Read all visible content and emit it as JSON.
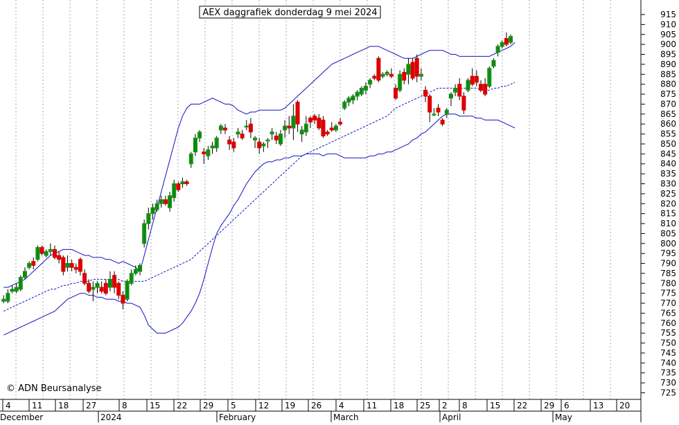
{
  "chart_data": {
    "type": "candlestick",
    "title": "AEX daggrafiek donderdag 9 mei 2024",
    "watermark": "© ADN Beursanalyse",
    "xlabel": "",
    "ylabel": "",
    "ylim": [
      721,
      918
    ],
    "y_ticks": [
      725,
      730,
      735,
      740,
      745,
      750,
      755,
      760,
      765,
      770,
      775,
      780,
      785,
      790,
      795,
      800,
      805,
      810,
      815,
      820,
      825,
      830,
      835,
      840,
      845,
      850,
      855,
      860,
      865,
      870,
      875,
      880,
      885,
      890,
      895,
      900,
      905,
      910,
      915
    ],
    "x_day_ticks": [
      "4",
      "11",
      "18",
      "27",
      "8",
      "15",
      "22",
      "29",
      "5",
      "12",
      "19",
      "26",
      "4",
      "11",
      "18",
      "25",
      "2",
      "8",
      "15",
      "22",
      "29",
      "6",
      "13",
      "20"
    ],
    "x_month_ticks": [
      "December",
      "2024",
      "February",
      "March",
      "April",
      "May"
    ],
    "grid": true,
    "colors": {
      "up": "#0a8a0a",
      "down": "#dd0000",
      "band": "#1010c0",
      "ma": "#1010c0",
      "grid": "#aaaaaa"
    },
    "candles": [
      {
        "o": 771,
        "h": 774,
        "l": 770,
        "c": 772
      },
      {
        "o": 771,
        "h": 777,
        "l": 770,
        "c": 775
      },
      {
        "o": 776,
        "h": 779,
        "l": 775,
        "c": 777
      },
      {
        "o": 776,
        "h": 780,
        "l": 775,
        "c": 778
      },
      {
        "o": 777,
        "h": 784,
        "l": 776,
        "c": 783
      },
      {
        "o": 783,
        "h": 788,
        "l": 782,
        "c": 786
      },
      {
        "o": 788,
        "h": 791,
        "l": 787,
        "c": 790
      },
      {
        "o": 791,
        "h": 793,
        "l": 787,
        "c": 789
      },
      {
        "o": 792,
        "h": 799,
        "l": 791,
        "c": 798
      },
      {
        "o": 798,
        "h": 799,
        "l": 794,
        "c": 795
      },
      {
        "o": 794,
        "h": 797,
        "l": 793,
        "c": 796
      },
      {
        "o": 796,
        "h": 800,
        "l": 794,
        "c": 797
      },
      {
        "o": 797,
        "h": 799,
        "l": 792,
        "c": 793
      },
      {
        "o": 794,
        "h": 796,
        "l": 790,
        "c": 792
      },
      {
        "o": 793,
        "h": 794,
        "l": 784,
        "c": 786
      },
      {
        "o": 788,
        "h": 794,
        "l": 786,
        "c": 790
      },
      {
        "o": 790,
        "h": 792,
        "l": 786,
        "c": 788
      },
      {
        "o": 788,
        "h": 790,
        "l": 785,
        "c": 787
      },
      {
        "o": 792,
        "h": 793,
        "l": 784,
        "c": 786
      },
      {
        "o": 785,
        "h": 787,
        "l": 779,
        "c": 780
      },
      {
        "o": 780,
        "h": 782,
        "l": 775,
        "c": 776
      },
      {
        "o": 777,
        "h": 781,
        "l": 771,
        "c": 778
      },
      {
        "o": 778,
        "h": 781,
        "l": 775,
        "c": 780
      },
      {
        "o": 778,
        "h": 781,
        "l": 775,
        "c": 776
      },
      {
        "o": 780,
        "h": 782,
        "l": 774,
        "c": 775
      },
      {
        "o": 778,
        "h": 786,
        "l": 776,
        "c": 782
      },
      {
        "o": 784,
        "h": 786,
        "l": 775,
        "c": 778
      },
      {
        "o": 780,
        "h": 781,
        "l": 772,
        "c": 774
      },
      {
        "o": 774,
        "h": 776,
        "l": 767,
        "c": 770
      },
      {
        "o": 772,
        "h": 782,
        "l": 771,
        "c": 781
      },
      {
        "o": 780,
        "h": 787,
        "l": 779,
        "c": 785
      },
      {
        "o": 785,
        "h": 789,
        "l": 784,
        "c": 787
      },
      {
        "o": 786,
        "h": 790,
        "l": 784,
        "c": 789
      },
      {
        "o": 800,
        "h": 812,
        "l": 798,
        "c": 810
      },
      {
        "o": 810,
        "h": 818,
        "l": 807,
        "c": 815
      },
      {
        "o": 815,
        "h": 820,
        "l": 812,
        "c": 818
      },
      {
        "o": 817,
        "h": 822,
        "l": 816,
        "c": 820
      },
      {
        "o": 820,
        "h": 824,
        "l": 818,
        "c": 822
      },
      {
        "o": 822,
        "h": 824,
        "l": 819,
        "c": 820
      },
      {
        "o": 818,
        "h": 826,
        "l": 816,
        "c": 824
      },
      {
        "o": 823,
        "h": 832,
        "l": 821,
        "c": 830
      },
      {
        "o": 830,
        "h": 831,
        "l": 826,
        "c": 827
      },
      {
        "o": 830,
        "h": 833,
        "l": 828,
        "c": 831
      },
      {
        "o": 831,
        "h": 832,
        "l": 829,
        "c": 830
      },
      {
        "o": 840,
        "h": 846,
        "l": 838,
        "c": 845
      },
      {
        "o": 846,
        "h": 855,
        "l": 844,
        "c": 853
      },
      {
        "o": 853,
        "h": 857,
        "l": 851,
        "c": 856
      },
      {
        "o": 846,
        "h": 848,
        "l": 840,
        "c": 845
      },
      {
        "o": 844,
        "h": 849,
        "l": 842,
        "c": 847
      },
      {
        "o": 848,
        "h": 851,
        "l": 845,
        "c": 849
      },
      {
        "o": 848,
        "h": 854,
        "l": 846,
        "c": 853
      },
      {
        "o": 857,
        "h": 860,
        "l": 855,
        "c": 859
      },
      {
        "o": 858,
        "h": 860,
        "l": 855,
        "c": 857
      },
      {
        "o": 852,
        "h": 854,
        "l": 847,
        "c": 850
      },
      {
        "o": 851,
        "h": 853,
        "l": 846,
        "c": 848
      },
      {
        "o": 855,
        "h": 858,
        "l": 853,
        "c": 856
      },
      {
        "o": 855,
        "h": 857,
        "l": 852,
        "c": 853
      },
      {
        "o": 859,
        "h": 862,
        "l": 857,
        "c": 859
      },
      {
        "o": 860,
        "h": 863,
        "l": 853,
        "c": 856
      },
      {
        "o": 852,
        "h": 854,
        "l": 848,
        "c": 853
      },
      {
        "o": 851,
        "h": 853,
        "l": 845,
        "c": 848
      },
      {
        "o": 849,
        "h": 851,
        "l": 846,
        "c": 850
      },
      {
        "o": 852,
        "h": 853,
        "l": 848,
        "c": 852
      },
      {
        "o": 855,
        "h": 858,
        "l": 852,
        "c": 856
      },
      {
        "o": 854,
        "h": 856,
        "l": 850,
        "c": 852
      },
      {
        "o": 850,
        "h": 857,
        "l": 849,
        "c": 855
      },
      {
        "o": 857,
        "h": 862,
        "l": 853,
        "c": 859
      },
      {
        "o": 859,
        "h": 864,
        "l": 855,
        "c": 858
      },
      {
        "o": 858,
        "h": 870,
        "l": 852,
        "c": 864
      },
      {
        "o": 871,
        "h": 872,
        "l": 856,
        "c": 860
      },
      {
        "o": 855,
        "h": 859,
        "l": 851,
        "c": 857
      },
      {
        "o": 856,
        "h": 864,
        "l": 854,
        "c": 860
      },
      {
        "o": 863,
        "h": 864,
        "l": 858,
        "c": 861
      },
      {
        "o": 864,
        "h": 865,
        "l": 860,
        "c": 862
      },
      {
        "o": 863,
        "h": 865,
        "l": 857,
        "c": 858
      },
      {
        "o": 862,
        "h": 864,
        "l": 853,
        "c": 854
      },
      {
        "o": 856,
        "h": 857,
        "l": 854,
        "c": 855
      },
      {
        "o": 858,
        "h": 861,
        "l": 856,
        "c": 857
      },
      {
        "o": 857,
        "h": 860,
        "l": 856,
        "c": 859
      },
      {
        "o": 861,
        "h": 863,
        "l": 859,
        "c": 860
      },
      {
        "o": 868,
        "h": 872,
        "l": 867,
        "c": 871
      },
      {
        "o": 871,
        "h": 874,
        "l": 869,
        "c": 873
      },
      {
        "o": 872,
        "h": 875,
        "l": 870,
        "c": 874
      },
      {
        "o": 874,
        "h": 877,
        "l": 872,
        "c": 876
      },
      {
        "o": 875,
        "h": 879,
        "l": 874,
        "c": 878
      },
      {
        "o": 877,
        "h": 881,
        "l": 875,
        "c": 879
      },
      {
        "o": 880,
        "h": 883,
        "l": 878,
        "c": 882
      },
      {
        "o": 884,
        "h": 885,
        "l": 882,
        "c": 883
      },
      {
        "o": 893,
        "h": 894,
        "l": 881,
        "c": 882
      },
      {
        "o": 884,
        "h": 886,
        "l": 883,
        "c": 885
      },
      {
        "o": 885,
        "h": 887,
        "l": 884,
        "c": 886
      },
      {
        "o": 885,
        "h": 888,
        "l": 883,
        "c": 884
      },
      {
        "o": 878,
        "h": 880,
        "l": 872,
        "c": 873
      },
      {
        "o": 877,
        "h": 887,
        "l": 876,
        "c": 885
      },
      {
        "o": 886,
        "h": 888,
        "l": 880,
        "c": 882
      },
      {
        "o": 885,
        "h": 893,
        "l": 880,
        "c": 890
      },
      {
        "o": 891,
        "h": 893,
        "l": 882,
        "c": 883
      },
      {
        "o": 893,
        "h": 895,
        "l": 881,
        "c": 884
      },
      {
        "o": 884,
        "h": 888,
        "l": 882,
        "c": 885
      },
      {
        "o": 877,
        "h": 879,
        "l": 871,
        "c": 874
      },
      {
        "o": 874,
        "h": 875,
        "l": 861,
        "c": 866
      },
      {
        "o": 865,
        "h": 868,
        "l": 864,
        "c": 865
      },
      {
        "o": 868,
        "h": 870,
        "l": 864,
        "c": 866
      },
      {
        "o": 862,
        "h": 863,
        "l": 859,
        "c": 860
      },
      {
        "o": 865,
        "h": 868,
        "l": 863,
        "c": 867
      },
      {
        "o": 873,
        "h": 876,
        "l": 869,
        "c": 875
      },
      {
        "o": 876,
        "h": 880,
        "l": 874,
        "c": 878
      },
      {
        "o": 880,
        "h": 883,
        "l": 872,
        "c": 874
      },
      {
        "o": 874,
        "h": 876,
        "l": 865,
        "c": 867
      },
      {
        "o": 877,
        "h": 883,
        "l": 876,
        "c": 882
      },
      {
        "o": 884,
        "h": 888,
        "l": 879,
        "c": 880
      },
      {
        "o": 884,
        "h": 887,
        "l": 879,
        "c": 881
      },
      {
        "o": 880,
        "h": 882,
        "l": 876,
        "c": 877
      },
      {
        "o": 880,
        "h": 883,
        "l": 874,
        "c": 875
      },
      {
        "o": 879,
        "h": 889,
        "l": 878,
        "c": 888
      },
      {
        "o": 889,
        "h": 893,
        "l": 888,
        "c": 892
      },
      {
        "o": 896,
        "h": 900,
        "l": 894,
        "c": 899
      },
      {
        "o": 899,
        "h": 902,
        "l": 898,
        "c": 901
      },
      {
        "o": 903,
        "h": 906,
        "l": 899,
        "c": 900
      },
      {
        "o": 901,
        "h": 905,
        "l": 900,
        "c": 904
      }
    ],
    "bollinger_upper": [
      778,
      778,
      779,
      780,
      781,
      782,
      784,
      786,
      788,
      790,
      792,
      794,
      795,
      796,
      797,
      797,
      797,
      796,
      795,
      794,
      794,
      793,
      793,
      793,
      792,
      792,
      791,
      790,
      791,
      790,
      789,
      788,
      786,
      794,
      802,
      810,
      818,
      826,
      834,
      842,
      850,
      858,
      864,
      868,
      870,
      870,
      870,
      871,
      872,
      873,
      872,
      871,
      870,
      870,
      869,
      867,
      866,
      865,
      866,
      866,
      867,
      867,
      867,
      867,
      867,
      867,
      868,
      870,
      872,
      874,
      876,
      878,
      880,
      882,
      884,
      886,
      888,
      890,
      891,
      892,
      893,
      894,
      895,
      896,
      897,
      898,
      899,
      899,
      899,
      898,
      897,
      896,
      895,
      894,
      893,
      893,
      893,
      894,
      895,
      896,
      897,
      897,
      897,
      897,
      896,
      895,
      895,
      894,
      894,
      894,
      894,
      894,
      894,
      894,
      894,
      895,
      896,
      897,
      898,
      899,
      901
    ],
    "bollinger_mid": [
      766,
      767,
      768,
      769,
      770,
      771,
      772,
      773,
      774,
      775,
      776,
      777,
      777,
      778,
      779,
      779,
      780,
      780,
      781,
      781,
      781,
      782,
      782,
      782,
      782,
      782,
      782,
      782,
      781,
      781,
      781,
      781,
      781,
      781,
      782,
      783,
      784,
      785,
      786,
      787,
      788,
      789,
      790,
      791,
      792,
      794,
      796,
      798,
      800,
      802,
      804,
      806,
      808,
      810,
      812,
      814,
      816,
      818,
      820,
      822,
      824,
      826,
      828,
      830,
      832,
      834,
      836,
      838,
      840,
      842,
      844,
      845,
      846,
      847,
      848,
      849,
      850,
      851,
      852,
      853,
      854,
      855,
      856,
      857,
      858,
      859,
      860,
      861,
      862,
      863,
      864,
      866,
      868,
      869,
      870,
      871,
      872,
      873,
      874,
      875,
      876,
      877,
      878,
      878,
      878,
      878,
      878,
      878,
      878,
      878,
      878,
      878,
      877,
      877,
      877,
      878,
      878,
      879,
      879,
      880,
      881
    ],
    "bollinger_lower": [
      754,
      755,
      756,
      757,
      758,
      759,
      760,
      761,
      762,
      763,
      764,
      765,
      766,
      768,
      770,
      772,
      773,
      774,
      775,
      775,
      774,
      774,
      773,
      773,
      772,
      772,
      772,
      771,
      771,
      770,
      770,
      769,
      768,
      764,
      759,
      757,
      755,
      755,
      755,
      756,
      757,
      758,
      760,
      763,
      766,
      770,
      775,
      782,
      790,
      798,
      805,
      809,
      812,
      815,
      819,
      822,
      826,
      830,
      833,
      836,
      838,
      840,
      841,
      841,
      842,
      842,
      843,
      843,
      844,
      844,
      844,
      845,
      845,
      845,
      845,
      844,
      845,
      845,
      845,
      844,
      843,
      843,
      843,
      843,
      843,
      843,
      844,
      844,
      845,
      845,
      846,
      846,
      847,
      848,
      849,
      850,
      852,
      853,
      855,
      856,
      858,
      860,
      862,
      864,
      865,
      865,
      865,
      864,
      864,
      864,
      864,
      863,
      863,
      862,
      862,
      862,
      862,
      861,
      860,
      859,
      858
    ]
  }
}
